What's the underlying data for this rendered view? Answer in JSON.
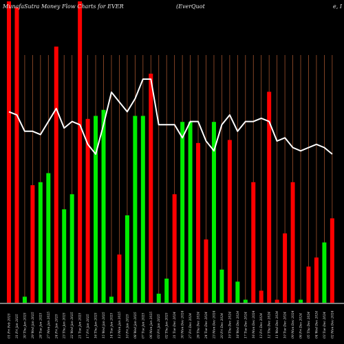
{
  "chart_data": {
    "type": "bar",
    "title": "MunafaSutra  Money Flow  Charts for EVER",
    "subtitle": "(EverQuot",
    "subtitle_tail": "e,  I",
    "xlabel": "",
    "ylabel": "",
    "grid": "vertical",
    "categories": [
      "01 Fri Feb 2025",
      "31 Fri Jan 2025",
      "30 Thu Jan 2025",
      "29 Wed Jan 2025",
      "28 Tue Jan 2025",
      "27 Mon Jan 2025",
      "24 Fri Jan 2025",
      "23 Thu Jan 2025",
      "22 Wed Jan 2025",
      "21 Tue Jan 2025",
      "17 Fri Jan 2025",
      "16 Thu Jan 2025",
      "15 Wed Jan 2025",
      "14 Tue Jan 2025",
      "13 Mon Jan 2025",
      "10 Fri Jan 2025",
      "08 Wed Jan 2025",
      "07 Tue Jan 2025",
      "06 Mon Jan 2025",
      "03 Fri Jan 2025",
      "02 Thu Jan 2025",
      "31 Tue Dec 2024",
      "30 Mon Dec 2024",
      "27 Fri Dec 2024",
      "26 Thu Dec 2024",
      "24 Tue Dec 2024",
      "23 Mon Dec 2024",
      "20 Fri Dec 2024",
      "19 Thu Dec 2024",
      "18 Wed Dec 2024",
      "17 Tue Dec 2024",
      "16 Mon Dec 2024",
      "13 Fri Dec 2024",
      "12 Thu Dec 2024",
      "11 Wed Dec 2024",
      "10 Tue Dec 2024",
      "09 Mon Dec 2024",
      "06 Fri Dec 2024",
      "05 Thu Dec 2024",
      "04 Wed Dec 2024",
      "03 Tue Dec 2024",
      "02 Mon Dec 2024"
    ],
    "bars": {
      "ylim": [
        0,
        100
      ],
      "values": [
        100,
        98,
        2,
        39,
        40,
        43,
        85,
        31,
        36,
        100,
        61,
        62,
        64,
        2,
        16,
        29,
        62,
        62,
        76,
        3,
        8,
        36,
        60,
        60,
        53,
        21,
        60,
        11,
        54,
        7,
        1,
        40,
        4,
        70,
        1,
        23,
        40,
        1,
        12,
        15,
        20,
        28
      ],
      "colors": [
        "red",
        "red",
        "green",
        "red",
        "green",
        "green",
        "red",
        "green",
        "green",
        "red",
        "red",
        "green",
        "green",
        "green",
        "red",
        "green",
        "green",
        "green",
        "red",
        "green",
        "green",
        "red",
        "green",
        "green",
        "red",
        "red",
        "green",
        "green",
        "red",
        "green",
        "green",
        "red",
        "red",
        "red",
        "red",
        "red",
        "red",
        "green",
        "red",
        "red",
        "green",
        "red"
      ]
    },
    "line": {
      "ylim": [
        0,
        100
      ],
      "values": [
        82,
        81,
        76,
        76,
        75,
        79,
        83,
        77,
        79,
        78,
        72,
        69,
        78,
        88,
        85,
        82,
        86,
        92,
        92,
        78,
        78,
        78,
        74,
        79,
        79,
        73,
        70,
        78,
        81,
        76,
        79,
        79,
        80,
        79,
        73,
        74,
        71,
        70,
        71,
        72,
        71,
        69
      ]
    },
    "colors": {
      "background": "#000000",
      "red": "#ff0000",
      "green": "#00ee00",
      "line": "#ffffff",
      "grid": "#a0522d",
      "axis": "#ffffff",
      "text": "#e8e8e8"
    }
  }
}
